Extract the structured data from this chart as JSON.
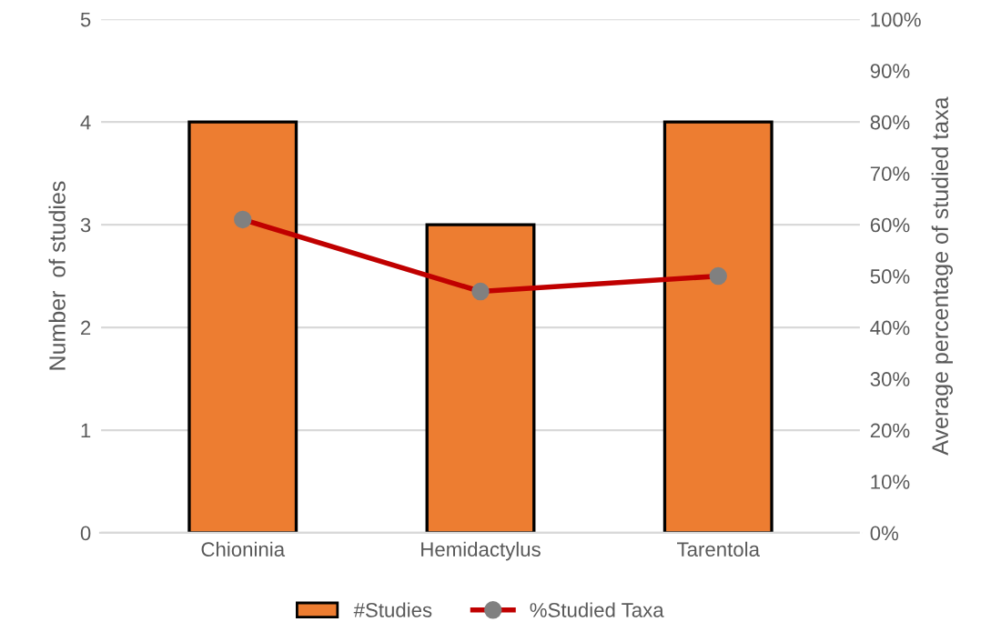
{
  "chart_data": {
    "type": "bar",
    "categories": [
      "Chioninia",
      "Hemidactylus",
      "Tarentola"
    ],
    "series": [
      {
        "name": "#Studies",
        "color": "#ed7d31",
        "values": [
          4,
          3,
          4
        ]
      },
      {
        "name": "%Studied Taxa",
        "type": "line",
        "axis": "y2",
        "color": "#c00000",
        "marker": "circle",
        "values": [
          61,
          47,
          50
        ]
      }
    ],
    "ylabel": "Number  of studies",
    "y2label": "Average percentage of studied taxa",
    "ylim": [
      0,
      5
    ],
    "yticks": [
      0,
      1,
      2,
      3,
      4,
      5
    ],
    "y2lim": [
      0,
      100
    ],
    "y2ticks": [
      {
        "value": 0,
        "label": "0%"
      },
      {
        "value": 10,
        "label": "10%"
      },
      {
        "value": 20,
        "label": "20%"
      },
      {
        "value": 30,
        "label": "30%"
      },
      {
        "value": 40,
        "label": "40%"
      },
      {
        "value": 50,
        "label": "50%"
      },
      {
        "value": 60,
        "label": "60%"
      },
      {
        "value": 70,
        "label": "70%"
      },
      {
        "value": 80,
        "label": "80%"
      },
      {
        "value": 90,
        "label": "90%"
      },
      {
        "value": 100,
        "label": "100%"
      }
    ],
    "grid": "y",
    "legend": "bottom"
  }
}
